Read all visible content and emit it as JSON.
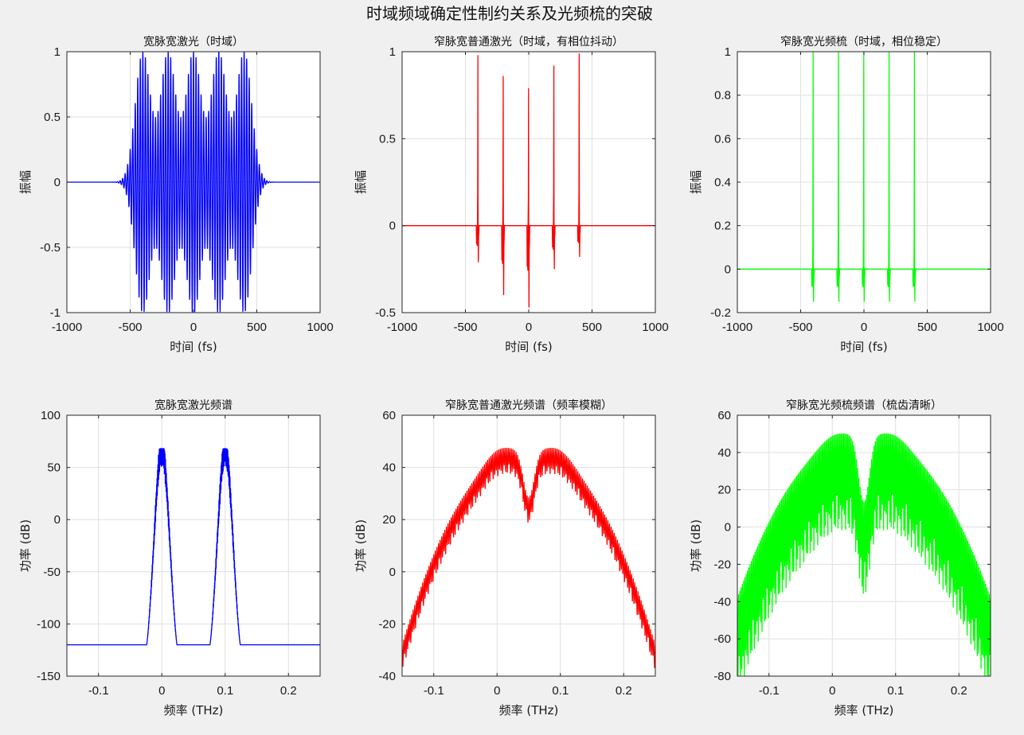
{
  "figure": {
    "title": "时域频域确定性制约关系及光频梳的突破"
  },
  "chart_data": [
    {
      "id": "p1",
      "type": "line",
      "title": "宽脉宽激光（时域）",
      "xlabel": "时间 (fs)",
      "ylabel": "振幅",
      "xlim": [
        -1000,
        1000
      ],
      "ylim": [
        -1,
        1
      ],
      "xticks": [
        -1000,
        -500,
        0,
        500,
        1000
      ],
      "yticks": [
        -1,
        -0.5,
        0,
        0.5,
        1
      ],
      "xtick_labels": [
        "-1000",
        "-500",
        "0",
        "500",
        "1000"
      ],
      "ytick_labels": [
        "-1",
        "-0.5",
        "0",
        "0.5",
        "1"
      ],
      "grid": true,
      "color": "#0000ff",
      "signal": {
        "kind": "wide_pulses",
        "centers": [
          -400,
          -200,
          0,
          200,
          400
        ],
        "peak": 1,
        "envelope_width": 60,
        "carrier_period": 20
      }
    },
    {
      "id": "p2",
      "type": "line",
      "title": "窄脉宽普通激光（时域，有相位抖动）",
      "xlabel": "时间 (fs)",
      "ylabel": "振幅",
      "xlim": [
        -1000,
        1000
      ],
      "ylim": [
        -0.5,
        1
      ],
      "xticks": [
        -1000,
        -500,
        0,
        500,
        1000
      ],
      "yticks": [
        -0.5,
        0,
        0.5,
        1
      ],
      "xtick_labels": [
        "-1000",
        "-500",
        "0",
        "500",
        "1000"
      ],
      "ytick_labels": [
        "-0.5",
        "0",
        "0.5",
        "1"
      ],
      "grid": true,
      "color": "#ff0000",
      "signal": {
        "kind": "narrow_pulses",
        "centers": [
          -400,
          -200,
          0,
          200,
          400
        ],
        "peaks": [
          0.98,
          0.86,
          0.79,
          0.92,
          0.99
        ],
        "troughs": [
          -0.21,
          -0.4,
          -0.47,
          -0.25,
          -0.18
        ]
      }
    },
    {
      "id": "p3",
      "type": "line",
      "title": "窄脉宽光频梳（时域，相位稳定）",
      "xlabel": "时间 (fs)",
      "ylabel": "振幅",
      "xlim": [
        -1000,
        1000
      ],
      "ylim": [
        -0.2,
        1
      ],
      "xticks": [
        -1000,
        -500,
        0,
        500,
        1000
      ],
      "yticks": [
        -0.2,
        0,
        0.2,
        0.4,
        0.6,
        0.8,
        1
      ],
      "xtick_labels": [
        "-1000",
        "-500",
        "0",
        "500",
        "1000"
      ],
      "ytick_labels": [
        "-0.2",
        "0",
        "0.2",
        "0.4",
        "0.6",
        "0.8",
        "1"
      ],
      "grid": true,
      "color": "#00ff00",
      "signal": {
        "kind": "narrow_pulses",
        "centers": [
          -400,
          -200,
          0,
          200,
          400
        ],
        "peaks": [
          1,
          1,
          1,
          1,
          1
        ],
        "troughs": [
          -0.15,
          -0.15,
          -0.15,
          -0.15,
          -0.15
        ]
      }
    },
    {
      "id": "p4",
      "type": "line",
      "title": "宽脉宽激光频谱",
      "xlabel": "频率 (THz)",
      "ylabel": "功率 (dB)",
      "xlim": [
        -0.15,
        0.25
      ],
      "ylim": [
        -150,
        100
      ],
      "xticks": [
        -0.1,
        0,
        0.1,
        0.2
      ],
      "yticks": [
        -150,
        -100,
        -50,
        0,
        50,
        100
      ],
      "xtick_labels": [
        "-0.1",
        "0",
        "0.1",
        "0.2"
      ],
      "ytick_labels": [
        "-150",
        "-100",
        "-50",
        "0",
        "50",
        "100"
      ],
      "grid": true,
      "color": "#0000ff",
      "signal": {
        "kind": "two_lobes",
        "centers": [
          0,
          0.1
        ],
        "floor": -120,
        "peak": 68,
        "half_width": 0.024
      }
    },
    {
      "id": "p5",
      "type": "line",
      "title": "窄脉宽普通激光频谱（频率模糊）",
      "xlabel": "频率 (THz)",
      "ylabel": "功率 (dB)",
      "xlim": [
        -0.15,
        0.25
      ],
      "ylim": [
        -40,
        60
      ],
      "xticks": [
        -0.1,
        0,
        0.1,
        0.2
      ],
      "yticks": [
        -40,
        -20,
        0,
        20,
        40,
        60
      ],
      "xtick_labels": [
        "-0.1",
        "0",
        "0.1",
        "0.2"
      ],
      "ytick_labels": [
        "-40",
        "-20",
        "0",
        "20",
        "40",
        "60"
      ],
      "grid": true,
      "color": "#ff0000",
      "signal": {
        "kind": "comb_spectrum",
        "top": 46,
        "edge_top": -28,
        "ripple": 10,
        "dip_center": 0.05,
        "dip_depth": 18,
        "lines": 160
      }
    },
    {
      "id": "p6",
      "type": "line",
      "title": "窄脉宽光频梳频谱（梳齿清晰）",
      "xlabel": "频率 (THz)",
      "ylabel": "功率 (dB)",
      "xlim": [
        -0.15,
        0.25
      ],
      "ylim": [
        -80,
        60
      ],
      "xticks": [
        -0.1,
        0,
        0.1,
        0.2
      ],
      "yticks": [
        -80,
        -60,
        -40,
        -20,
        0,
        20,
        40,
        60
      ],
      "xtick_labels": [
        "-0.1",
        "0",
        "0.1",
        "0.2"
      ],
      "ytick_labels": [
        "-80",
        "-60",
        "-40",
        "-20",
        "0",
        "20",
        "40",
        "60"
      ],
      "grid": true,
      "color": "#00ff00",
      "signal": {
        "kind": "comb_spectrum",
        "top": 49,
        "edge_top": -38,
        "ripple": 52,
        "dip_center": 0.05,
        "dip_depth": 36,
        "lines": 200
      }
    }
  ]
}
